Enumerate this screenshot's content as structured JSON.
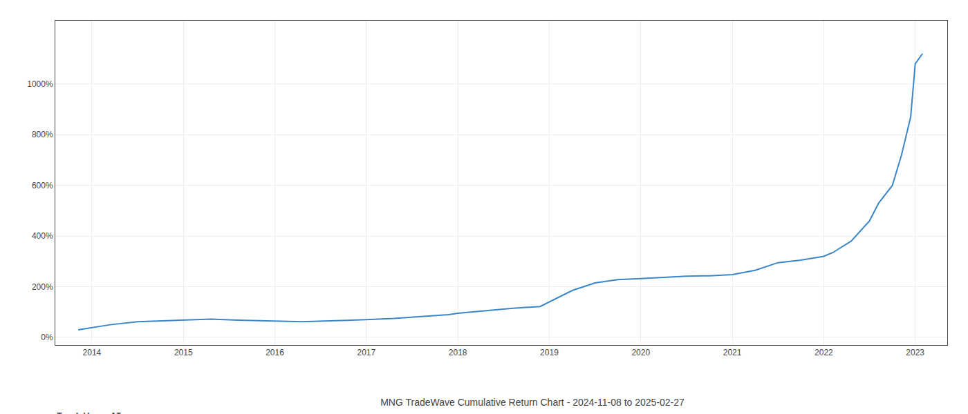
{
  "chart_data": {
    "type": "line",
    "title": "MNG TradeWave Cumulative Return Chart - 2024-11-08 to 2025-02-27",
    "annotations": [
      "TradeWave.AI"
    ],
    "color": "#3a86c8",
    "grid": true,
    "x": [
      2013.85,
      2014.0,
      2014.2,
      2014.5,
      2014.75,
      2015.0,
      2015.3,
      2015.6,
      2015.9,
      2016.0,
      2016.3,
      2016.6,
      2016.9,
      2017.0,
      2017.3,
      2017.6,
      2017.9,
      2018.0,
      2018.3,
      2018.6,
      2018.9,
      2019.0,
      2019.1,
      2019.25,
      2019.5,
      2019.75,
      2020.0,
      2020.25,
      2020.5,
      2020.75,
      2021.0,
      2021.25,
      2021.5,
      2021.75,
      2022.0,
      2022.1,
      2022.3,
      2022.5,
      2022.6,
      2022.75,
      2022.85,
      2022.95,
      2023.0,
      2023.08
    ],
    "values": [
      30,
      38,
      50,
      62,
      65,
      68,
      72,
      68,
      65,
      63,
      62,
      65,
      68,
      70,
      75,
      83,
      90,
      95,
      105,
      115,
      122,
      140,
      160,
      185,
      215,
      228,
      232,
      237,
      242,
      243,
      248,
      265,
      295,
      305,
      320,
      335,
      380,
      460,
      530,
      600,
      720,
      870,
      1080,
      1120
    ],
    "xlim": [
      2013.6,
      2023.35
    ],
    "xticks": [
      2014,
      2015,
      2016,
      2017,
      2018,
      2019,
      2020,
      2021,
      2022,
      2023
    ],
    "ylim": [
      -30,
      1250
    ],
    "yticks": [
      {
        "value": 0,
        "label": "0%"
      },
      {
        "value": 200,
        "label": "200%"
      },
      {
        "value": 400,
        "label": "400%"
      },
      {
        "value": 600,
        "label": "600%"
      },
      {
        "value": 800,
        "label": "800%"
      },
      {
        "value": 1000,
        "label": "1000%"
      }
    ]
  }
}
